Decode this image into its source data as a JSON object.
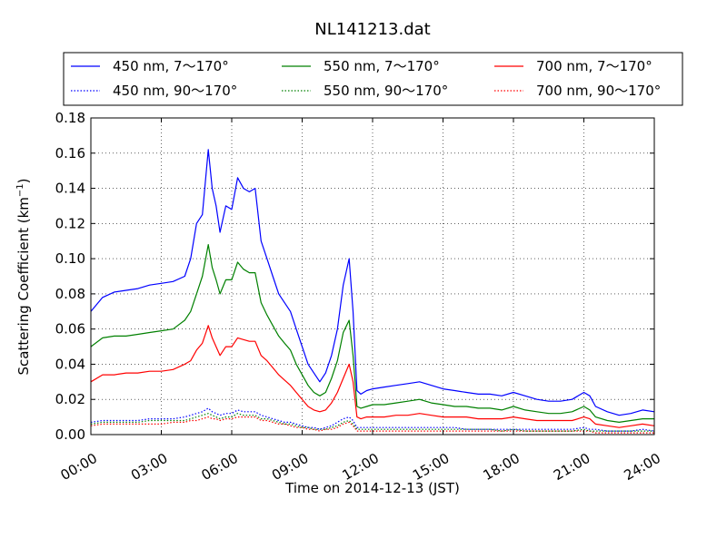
{
  "chart_data": {
    "type": "line",
    "title": "NL141213.dat",
    "xlabel": "Time on 2014-12-13 (JST)",
    "ylabel": "Scattering Coefficient (km",
    "ylabel_sup": "−1",
    "ylabel_close": ")",
    "xlim": [
      "00:00",
      "24:00"
    ],
    "ylim": [
      0,
      0.18
    ],
    "x_ticks": [
      "00:00",
      "03:00",
      "06:00",
      "09:00",
      "12:00",
      "15:00",
      "18:00",
      "21:00",
      "24:00"
    ],
    "y_ticks": [
      "0.00",
      "0.02",
      "0.04",
      "0.06",
      "0.08",
      "0.10",
      "0.12",
      "0.14",
      "0.16",
      "0.18"
    ],
    "grid": true,
    "legend_position": "top",
    "colors": {
      "blue": "#0000ff",
      "green": "#008000",
      "red": "#ff0000"
    },
    "x": [
      "00:00",
      "00:30",
      "01:00",
      "01:30",
      "02:00",
      "02:30",
      "03:00",
      "03:30",
      "04:00",
      "04:15",
      "04:30",
      "04:45",
      "05:00",
      "05:10",
      "05:20",
      "05:30",
      "05:45",
      "06:00",
      "06:15",
      "06:30",
      "06:45",
      "07:00",
      "07:15",
      "07:30",
      "07:45",
      "08:00",
      "08:15",
      "08:30",
      "08:45",
      "09:00",
      "09:15",
      "09:30",
      "09:45",
      "10:00",
      "10:15",
      "10:30",
      "10:45",
      "11:00",
      "11:10",
      "11:20",
      "11:30",
      "11:45",
      "12:00",
      "12:30",
      "13:00",
      "13:30",
      "14:00",
      "14:30",
      "15:00",
      "15:30",
      "16:00",
      "16:30",
      "17:00",
      "17:30",
      "18:00",
      "18:30",
      "19:00",
      "19:30",
      "20:00",
      "20:30",
      "21:00",
      "21:15",
      "21:30",
      "22:00",
      "22:30",
      "23:00",
      "23:30",
      "24:00"
    ],
    "series": [
      {
        "name": "450 nm, 7～170°",
        "color": "blue",
        "style": "solid",
        "values": [
          0.07,
          0.078,
          0.081,
          0.082,
          0.083,
          0.085,
          0.086,
          0.087,
          0.09,
          0.1,
          0.12,
          0.125,
          0.162,
          0.14,
          0.13,
          0.115,
          0.13,
          0.128,
          0.146,
          0.14,
          0.138,
          0.14,
          0.11,
          0.1,
          0.09,
          0.08,
          0.075,
          0.07,
          0.06,
          0.05,
          0.04,
          0.035,
          0.03,
          0.035,
          0.045,
          0.06,
          0.085,
          0.1,
          0.07,
          0.025,
          0.023,
          0.025,
          0.026,
          0.027,
          0.028,
          0.029,
          0.03,
          0.028,
          0.026,
          0.025,
          0.024,
          0.023,
          0.023,
          0.022,
          0.024,
          0.022,
          0.02,
          0.019,
          0.019,
          0.02,
          0.024,
          0.022,
          0.016,
          0.013,
          0.011,
          0.012,
          0.014,
          0.013
        ]
      },
      {
        "name": "450 nm, 90～170°",
        "color": "blue",
        "style": "dotted",
        "values": [
          0.007,
          0.008,
          0.008,
          0.008,
          0.008,
          0.009,
          0.009,
          0.009,
          0.01,
          0.011,
          0.012,
          0.013,
          0.015,
          0.013,
          0.012,
          0.011,
          0.012,
          0.012,
          0.014,
          0.013,
          0.013,
          0.013,
          0.011,
          0.01,
          0.009,
          0.008,
          0.007,
          0.007,
          0.006,
          0.005,
          0.004,
          0.004,
          0.003,
          0.004,
          0.005,
          0.007,
          0.009,
          0.01,
          0.008,
          0.004,
          0.004,
          0.004,
          0.004,
          0.004,
          0.004,
          0.004,
          0.004,
          0.004,
          0.004,
          0.004,
          0.003,
          0.003,
          0.003,
          0.003,
          0.003,
          0.003,
          0.003,
          0.003,
          0.003,
          0.003,
          0.004,
          0.003,
          0.003,
          0.002,
          0.002,
          0.002,
          0.003,
          0.002
        ]
      },
      {
        "name": "550 nm, 7～170°",
        "color": "green",
        "style": "solid",
        "values": [
          0.05,
          0.055,
          0.056,
          0.056,
          0.057,
          0.058,
          0.059,
          0.06,
          0.065,
          0.07,
          0.08,
          0.09,
          0.108,
          0.095,
          0.088,
          0.08,
          0.088,
          0.088,
          0.098,
          0.094,
          0.092,
          0.092,
          0.075,
          0.068,
          0.062,
          0.056,
          0.052,
          0.048,
          0.04,
          0.034,
          0.028,
          0.024,
          0.022,
          0.024,
          0.032,
          0.042,
          0.058,
          0.065,
          0.045,
          0.016,
          0.015,
          0.016,
          0.017,
          0.017,
          0.018,
          0.019,
          0.02,
          0.018,
          0.017,
          0.016,
          0.016,
          0.015,
          0.015,
          0.014,
          0.016,
          0.014,
          0.013,
          0.012,
          0.012,
          0.013,
          0.016,
          0.014,
          0.01,
          0.008,
          0.007,
          0.008,
          0.009,
          0.009
        ]
      },
      {
        "name": "550 nm, 90～170°",
        "color": "green",
        "style": "dotted",
        "values": [
          0.006,
          0.007,
          0.007,
          0.007,
          0.007,
          0.008,
          0.008,
          0.008,
          0.008,
          0.009,
          0.01,
          0.011,
          0.012,
          0.011,
          0.01,
          0.009,
          0.01,
          0.01,
          0.012,
          0.011,
          0.011,
          0.011,
          0.009,
          0.009,
          0.008,
          0.007,
          0.006,
          0.006,
          0.005,
          0.004,
          0.004,
          0.003,
          0.003,
          0.003,
          0.004,
          0.005,
          0.007,
          0.008,
          0.006,
          0.003,
          0.003,
          0.003,
          0.003,
          0.003,
          0.003,
          0.003,
          0.003,
          0.003,
          0.003,
          0.003,
          0.003,
          0.003,
          0.003,
          0.002,
          0.003,
          0.002,
          0.002,
          0.002,
          0.002,
          0.002,
          0.003,
          0.002,
          0.002,
          0.002,
          0.002,
          0.002,
          0.002,
          0.002
        ]
      },
      {
        "name": "700 nm, 7～170°",
        "color": "red",
        "style": "solid",
        "values": [
          0.03,
          0.034,
          0.034,
          0.035,
          0.035,
          0.036,
          0.036,
          0.037,
          0.04,
          0.042,
          0.048,
          0.052,
          0.062,
          0.055,
          0.05,
          0.045,
          0.05,
          0.05,
          0.055,
          0.054,
          0.053,
          0.053,
          0.045,
          0.042,
          0.038,
          0.034,
          0.031,
          0.028,
          0.024,
          0.02,
          0.016,
          0.014,
          0.013,
          0.014,
          0.018,
          0.024,
          0.032,
          0.04,
          0.03,
          0.01,
          0.009,
          0.01,
          0.01,
          0.01,
          0.011,
          0.011,
          0.012,
          0.011,
          0.01,
          0.01,
          0.01,
          0.009,
          0.009,
          0.009,
          0.01,
          0.009,
          0.008,
          0.008,
          0.008,
          0.008,
          0.01,
          0.009,
          0.006,
          0.005,
          0.004,
          0.005,
          0.006,
          0.005
        ]
      },
      {
        "name": "700 nm, 90～170°",
        "color": "red",
        "style": "dotted",
        "values": [
          0.005,
          0.006,
          0.006,
          0.006,
          0.006,
          0.006,
          0.006,
          0.007,
          0.007,
          0.008,
          0.008,
          0.009,
          0.01,
          0.009,
          0.009,
          0.008,
          0.009,
          0.009,
          0.01,
          0.01,
          0.01,
          0.01,
          0.008,
          0.008,
          0.007,
          0.006,
          0.006,
          0.005,
          0.004,
          0.004,
          0.003,
          0.003,
          0.002,
          0.003,
          0.003,
          0.004,
          0.006,
          0.007,
          0.005,
          0.002,
          0.002,
          0.002,
          0.002,
          0.002,
          0.002,
          0.002,
          0.002,
          0.002,
          0.002,
          0.002,
          0.002,
          0.002,
          0.002,
          0.002,
          0.002,
          0.002,
          0.002,
          0.002,
          0.002,
          0.002,
          0.002,
          0.002,
          0.001,
          0.001,
          0.001,
          0.001,
          0.001,
          0.001
        ]
      }
    ]
  }
}
